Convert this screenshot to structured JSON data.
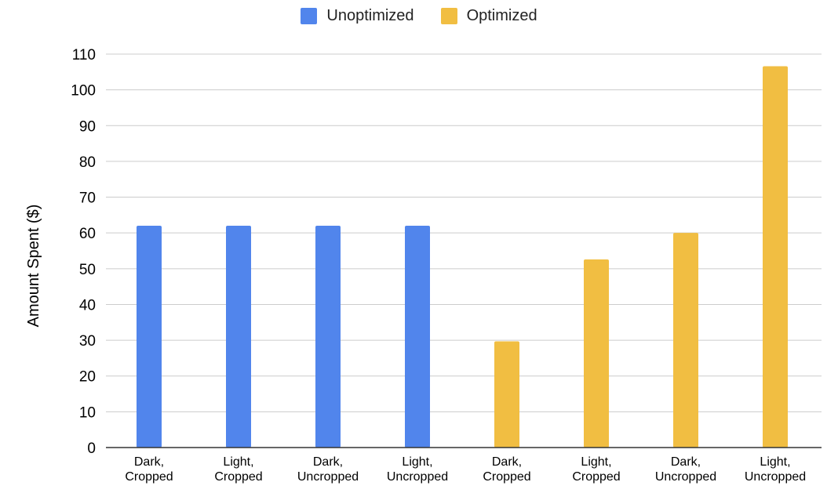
{
  "chart_data": {
    "type": "bar",
    "categories": [
      [
        "Dark,",
        "Cropped"
      ],
      [
        "Light,",
        "Cropped"
      ],
      [
        "Dark,",
        "Uncropped"
      ],
      [
        "Light,",
        "Uncropped"
      ],
      [
        "Dark,",
        "Cropped"
      ],
      [
        "Light,",
        "Cropped"
      ],
      [
        "Dark,",
        "Uncropped"
      ],
      [
        "Light,",
        "Uncropped"
      ]
    ],
    "series": [
      {
        "name": "Unoptimized",
        "color": "#5185ec",
        "values": [
          62,
          62,
          62,
          62,
          null,
          null,
          null,
          null
        ]
      },
      {
        "name": "Optimized",
        "color": "#f1be42",
        "values": [
          null,
          null,
          null,
          null,
          29.7,
          52.6,
          60,
          106.6
        ]
      }
    ],
    "title": "",
    "xlabel": "",
    "ylabel": "Amount Spent ($)",
    "ylim": [
      0,
      110
    ],
    "yticks": [
      0,
      10,
      20,
      30,
      40,
      50,
      60,
      70,
      80,
      90,
      100,
      110
    ],
    "grid": true,
    "legend_position": "top-center",
    "gridline_color": "#cccccc",
    "axis_color": "#333333"
  }
}
